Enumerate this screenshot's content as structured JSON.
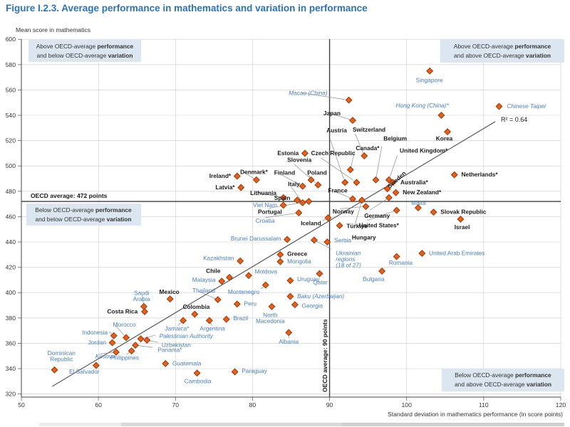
{
  "title": "Figure I.2.3. Average performance in mathematics and variation in performance",
  "colors": {
    "title_blue": "#2e73b5",
    "marker_fill": "#e2611f",
    "marker_stroke": "#9a3b0c",
    "partner_label": "#4a7ebc",
    "oecd_label": "#1a1a1a",
    "quadrant_box_bg": "#dce6f1",
    "gridline": "#cccccc",
    "reference_line": "#3f3f3f"
  },
  "chart_data": {
    "type": "scatter",
    "title": "Figure I.2.3. Average performance in mathematics and variation in performance",
    "ylabel": "Mean score in mathematics",
    "xlabel": "Standard deviation in mathematics performance (in score points)",
    "xlim": [
      50,
      120
    ],
    "xtick_step": 10,
    "ylim": [
      320,
      600
    ],
    "ytick_step": 20,
    "grid": true,
    "oecd_line_h": {
      "value": 472,
      "label": "OECD average: 472 points"
    },
    "oecd_line_v": {
      "value": 90,
      "label": "OECD average: 90 points"
    },
    "trend": {
      "x1": 54,
      "y1": 326,
      "x2": 111.5,
      "y2": 535,
      "r2_label": "R² = 0.64"
    },
    "quadrants": {
      "tl": {
        "l1": "Above OECD-average ",
        "l1b": "performance",
        "l2": "and below OECD-average ",
        "l2b": "variation"
      },
      "tr": {
        "l1": "Above OECD-average ",
        "l1b": "performance",
        "l2": "and above OECD-average ",
        "l2b": "variation"
      },
      "bl": {
        "l1": "Below OECD-average ",
        "l1b": "performance",
        "l2": "and below OECD-average ",
        "l2b": "variation"
      },
      "br": {
        "l1": "Below OECD-average ",
        "l1b": "performance",
        "l2": "and above OECD-average ",
        "l2b": "variation"
      }
    },
    "points": [
      {
        "label": "Singapore",
        "sd": 103,
        "mean": 575,
        "grp": "p",
        "lx": 101.2,
        "ly": 567.5,
        "ta": "s"
      },
      {
        "label": "Macao (China)",
        "sd": 92.5,
        "mean": 552,
        "grp": "p",
        "i": true,
        "lx": 84.7,
        "ly": 557.5,
        "ta": "s",
        "ld": true
      },
      {
        "label": "Chinese Taipei",
        "sd": 112,
        "mean": 547,
        "grp": "p",
        "i": true,
        "lx": 113,
        "ly": 547,
        "ta": "s"
      },
      {
        "label": "Hong Kong (China)*",
        "sd": 104.5,
        "mean": 540,
        "grp": "p",
        "i": true,
        "lx": 98.6,
        "ly": 547.5,
        "ta": "s"
      },
      {
        "label": "Japan",
        "sd": 93,
        "mean": 536,
        "grp": "o",
        "lx": 89.2,
        "ly": 541.5,
        "ta": "s",
        "ld": true
      },
      {
        "label": "Korea",
        "sd": 105.3,
        "mean": 527,
        "grp": "o",
        "lx": 103.8,
        "ly": 521.5,
        "ta": "s"
      },
      {
        "label": "Estonia",
        "sd": 86.8,
        "mean": 510,
        "grp": "o",
        "lx": 86,
        "ly": 510,
        "ta": "e"
      },
      {
        "label": "Czech Republic",
        "sd": 93.5,
        "mean": 487,
        "grp": "o",
        "lx": 87.6,
        "ly": 510,
        "ta": "s",
        "ld": true
      },
      {
        "label": "Switzerland",
        "sd": 94.5,
        "mean": 508,
        "grp": "o",
        "lx": 93,
        "ly": 528.5,
        "ta": "s",
        "ld": true
      },
      {
        "label": "Austria",
        "sd": 92,
        "mean": 487,
        "grp": "o",
        "lx": 89.6,
        "ly": 528,
        "ta": "s",
        "ld": true
      },
      {
        "label": "Belgium",
        "sd": 96,
        "mean": 489,
        "grp": "o",
        "lx": 97,
        "ly": 521.5,
        "ta": "s",
        "ld": true
      },
      {
        "label": "Canada*",
        "sd": 92.7,
        "mean": 497,
        "grp": "o",
        "lx": 93.4,
        "ly": 514,
        "ta": "s",
        "ld": true
      },
      {
        "label": "United Kingdom*",
        "sd": 97.7,
        "mean": 489,
        "grp": "o",
        "lx": 99.1,
        "ly": 512,
        "ta": "s",
        "ld": true
      },
      {
        "label": "Slovenia",
        "sd": 88.5,
        "mean": 485,
        "grp": "o",
        "lx": 84.5,
        "ly": 504.5,
        "ta": "s",
        "ld": true
      },
      {
        "label": "Finland",
        "sd": 86.5,
        "mean": 484,
        "grp": "o",
        "lx": 82.8,
        "ly": 494.5,
        "ta": "s",
        "ld": true
      },
      {
        "label": "Poland",
        "sd": 87.6,
        "mean": 489,
        "grp": "o",
        "lx": 87.1,
        "ly": 494.5,
        "ta": "s",
        "ld": true
      },
      {
        "label": "Italy",
        "sd": 86.5,
        "mean": 471,
        "grp": "o",
        "lx": 84.6,
        "ly": 485.5,
        "ta": "s",
        "ld": true
      },
      {
        "label": "Denmark*",
        "sd": 80.5,
        "mean": 489,
        "grp": "o",
        "lx": 78.4,
        "ly": 495,
        "ta": "s",
        "ld": true
      },
      {
        "label": "Ireland*",
        "sd": 78,
        "mean": 492,
        "grp": "o",
        "lx": 77.2,
        "ly": 492,
        "ta": "e"
      },
      {
        "label": "Latvia*",
        "sd": 78.5,
        "mean": 483,
        "grp": "o",
        "lx": 77.7,
        "ly": 483,
        "ta": "e"
      },
      {
        "label": "Lithuania",
        "sd": 84,
        "mean": 475,
        "grp": "o",
        "lx": 79.7,
        "ly": 478.5,
        "ta": "s",
        "ld": true
      },
      {
        "label": "Spain",
        "sd": 85.8,
        "mean": 473,
        "grp": "o",
        "lx": 84.9,
        "ly": 474.5,
        "ta": "e"
      },
      {
        "label": "Viet Nam",
        "sd": 84,
        "mean": 469,
        "grp": "p",
        "lx": 83.2,
        "ly": 469,
        "ta": "e"
      },
      {
        "label": "Portugal",
        "sd": 87.3,
        "mean": 472,
        "grp": "o",
        "lx": 80.7,
        "ly": 463.5,
        "ta": "s",
        "ld": true
      },
      {
        "label": "Croatia",
        "sd": 86,
        "mean": 463,
        "grp": "p",
        "lx": 80.4,
        "ly": 456.5,
        "ta": "s",
        "ld": true
      },
      {
        "label": "Iceland",
        "sd": 89.8,
        "mean": 459,
        "grp": "o",
        "lx": 88.9,
        "ly": 454.5,
        "ta": "e",
        "ld": true
      },
      {
        "label": "Türkiye",
        "sd": 91.3,
        "mean": 453,
        "grp": "o",
        "lx": 92.2,
        "ly": 452.5,
        "ta": "s"
      },
      {
        "label": "Norway",
        "sd": 94.7,
        "mean": 468,
        "grp": "o",
        "lx": 90.4,
        "ly": 464,
        "ta": "s",
        "ld": true
      },
      {
        "label": "France",
        "sd": 93,
        "mean": 474,
        "grp": "o",
        "lx": 89.8,
        "ly": 480.5,
        "ta": "s",
        "ld": true
      },
      {
        "label": "Sweden",
        "sd": 97.5,
        "mean": 482,
        "grp": "o",
        "lx": 97.8,
        "ly": 483.5,
        "ta": "s",
        "rot": -42
      },
      {
        "label": "Australia*",
        "sd": 98.2,
        "mean": 487,
        "grp": "o",
        "lx": 99.2,
        "ly": 487,
        "ta": "s"
      },
      {
        "label": "New Zealand*",
        "sd": 98.6,
        "mean": 479,
        "grp": "o",
        "lx": 99.5,
        "ly": 479,
        "ta": "s"
      },
      {
        "label": "Netherlands*",
        "sd": 106.2,
        "mean": 493,
        "grp": "o",
        "lx": 107.1,
        "ly": 493,
        "ta": "s"
      },
      {
        "label": "Germany",
        "sd": 97.7,
        "mean": 475,
        "grp": "o",
        "lx": 94.5,
        "ly": 460.5,
        "ta": "s",
        "ld": true
      },
      {
        "label": "United States*",
        "sd": 98.7,
        "mean": 465,
        "grp": "o",
        "lx": 93.8,
        "ly": 453,
        "ta": "s",
        "ld": true
      },
      {
        "label": "Hungary",
        "sd": 94.2,
        "mean": 473,
        "grp": "o",
        "lx": 92.9,
        "ly": 443.5,
        "ta": "s",
        "ld": true
      },
      {
        "label": "Malta",
        "sd": 101.5,
        "mean": 467,
        "grp": "p",
        "lx": 100.6,
        "ly": 470.5,
        "ta": "s"
      },
      {
        "label": "Slovak Republic",
        "sd": 103.5,
        "mean": 463.5,
        "grp": "o",
        "lx": 104.4,
        "ly": 463.5,
        "ta": "s"
      },
      {
        "label": "Israel",
        "sd": 107,
        "mean": 458,
        "grp": "o",
        "lx": 107.2,
        "ly": 451.5,
        "ta": "m"
      },
      {
        "label": "Brunei Darussalam",
        "sd": 84.5,
        "mean": 442,
        "grp": "p",
        "lx": 83.7,
        "ly": 442.5,
        "ta": "e"
      },
      {
        "label": "Serbia",
        "sd": 89.7,
        "mean": 440,
        "grp": "p",
        "lx": 90.6,
        "ly": 441,
        "ta": "s"
      },
      {
        "label": "Ukrainian regions (18 of 27)",
        "sd": 88,
        "mean": 441.5,
        "grp": "p",
        "i": true,
        "lx": 90.8,
        "ly": 431,
        "ta": "s",
        "ld": true,
        "lines": [
          "Ukrainian",
          "regions",
          "(18 of 27)"
        ]
      },
      {
        "label": "United Arab Emirates",
        "sd": 102,
        "mean": 431,
        "grp": "p",
        "lx": 102.9,
        "ly": 431,
        "ta": "s"
      },
      {
        "label": "Romania",
        "sd": 98.7,
        "mean": 428.5,
        "grp": "p",
        "lx": 97.7,
        "ly": 423.5,
        "ta": "s"
      },
      {
        "label": "Greece",
        "sd": 83.6,
        "mean": 430,
        "grp": "o",
        "lx": 84.5,
        "ly": 430.5,
        "ta": "s"
      },
      {
        "label": "Mongolia",
        "sd": 83.6,
        "mean": 424.5,
        "grp": "p",
        "lx": 84.5,
        "ly": 424.5,
        "ta": "s"
      },
      {
        "label": "Kazakhstan",
        "sd": 78.4,
        "mean": 425,
        "grp": "p",
        "lx": 77.6,
        "ly": 427,
        "ta": "e"
      },
      {
        "label": "Bulgaria",
        "sd": 96.8,
        "mean": 417,
        "grp": "p",
        "lx": 94.3,
        "ly": 410.5,
        "ta": "s"
      },
      {
        "label": "Moldova",
        "sd": 79.5,
        "mean": 413.5,
        "grp": "p",
        "lx": 80.3,
        "ly": 416.5,
        "ta": "s"
      },
      {
        "label": "Qatar",
        "sd": 88.7,
        "mean": 415,
        "grp": "p",
        "lx": 88.8,
        "ly": 408,
        "ta": "m"
      },
      {
        "label": "Uruguay",
        "sd": 84.9,
        "mean": 409.5,
        "grp": "p",
        "lx": 85.8,
        "ly": 410.5,
        "ta": "s"
      },
      {
        "label": "Chile",
        "sd": 77,
        "mean": 412,
        "grp": "o",
        "lx": 74.9,
        "ly": 417,
        "ta": "m"
      },
      {
        "label": "Malaysia",
        "sd": 76,
        "mean": 409,
        "grp": "p",
        "lx": 75.2,
        "ly": 410,
        "ta": "e"
      },
      {
        "label": "Montenegro",
        "sd": 81.7,
        "mean": 406,
        "grp": "p",
        "lx": 80.9,
        "ly": 400.5,
        "ta": "e",
        "ld": true
      },
      {
        "label": "Thailand",
        "sd": 75.5,
        "mean": 394.5,
        "grp": "p",
        "lx": 72.2,
        "ly": 401.5,
        "ta": "s",
        "ld": true
      },
      {
        "label": "Peru",
        "sd": 78,
        "mean": 391,
        "grp": "p",
        "lx": 78.9,
        "ly": 391,
        "ta": "s"
      },
      {
        "label": "Baku (Azerbaijan)",
        "sd": 84.9,
        "mean": 397,
        "grp": "p",
        "i": true,
        "lx": 85.8,
        "ly": 397,
        "ta": "s"
      },
      {
        "label": "Georgia",
        "sd": 85.5,
        "mean": 390.5,
        "grp": "p",
        "lx": 86.4,
        "ly": 389.5,
        "ta": "s"
      },
      {
        "label": "North Macedonia",
        "sd": 82.5,
        "mean": 389,
        "grp": "p",
        "lx": 82.3,
        "ly": 382,
        "ta": "m",
        "lines": [
          "North",
          "Macedonia"
        ]
      },
      {
        "label": "Albania",
        "sd": 84.7,
        "mean": 368.5,
        "grp": "p",
        "lx": 84.7,
        "ly": 361,
        "ta": "m",
        "ld": true
      },
      {
        "label": "Mexico",
        "sd": 69.3,
        "mean": 395,
        "grp": "o",
        "lx": 69.2,
        "ly": 400.5,
        "ta": "m"
      },
      {
        "label": "Saudi Arabia",
        "sd": 65.9,
        "mean": 389,
        "grp": "p",
        "lx": 65.6,
        "ly": 399.5,
        "ta": "m",
        "ld": true,
        "lines": [
          "Saudi",
          "Arabia"
        ]
      },
      {
        "label": "Costa Rica",
        "sd": 66,
        "mean": 385,
        "grp": "o",
        "lx": 65.1,
        "ly": 385,
        "ta": "e"
      },
      {
        "label": "Colombia",
        "sd": 72.5,
        "mean": 383,
        "grp": "o",
        "lx": 72.7,
        "ly": 388.5,
        "ta": "m"
      },
      {
        "label": "Brazil",
        "sd": 76.6,
        "mean": 379,
        "grp": "p",
        "lx": 77.5,
        "ly": 379.5,
        "ta": "s"
      },
      {
        "label": "Argentina",
        "sd": 74.4,
        "mean": 378,
        "grp": "p",
        "lx": 74.8,
        "ly": 371.5,
        "ta": "m",
        "ld": true
      },
      {
        "label": "Jamaica*",
        "sd": 71,
        "mean": 378,
        "grp": "p",
        "lx": 70.2,
        "ly": 371.5,
        "ta": "m",
        "ld": true
      },
      {
        "label": "Morocco",
        "sd": 63.6,
        "mean": 364.5,
        "grp": "p",
        "lx": 61.9,
        "ly": 374.5,
        "ta": "s",
        "ld": true
      },
      {
        "label": "Indonesia",
        "sd": 62,
        "mean": 366,
        "grp": "p",
        "lx": 61.2,
        "ly": 368.5,
        "ta": "e",
        "ld": true
      },
      {
        "label": "Jordan",
        "sd": 61.8,
        "mean": 360.5,
        "grp": "p",
        "lx": 61,
        "ly": 360.5,
        "ta": "e"
      },
      {
        "label": "Palestinian Authority",
        "sd": 65.5,
        "mean": 363.5,
        "grp": "p",
        "i": true,
        "lx": 67.9,
        "ly": 365.5,
        "ta": "s",
        "ld": true
      },
      {
        "label": "Uzbekistan",
        "sd": 66.3,
        "mean": 362.5,
        "grp": "p",
        "lx": 68.2,
        "ly": 358.5,
        "ta": "s",
        "ld": true
      },
      {
        "label": "Panama*",
        "sd": 64.8,
        "mean": 358.5,
        "grp": "p",
        "lx": 67.7,
        "ly": 354.5,
        "ta": "s",
        "ld": true
      },
      {
        "label": "Philippines",
        "sd": 64.3,
        "mean": 354,
        "grp": "p",
        "lx": 63.4,
        "ly": 348.5,
        "ta": "m",
        "ld": true
      },
      {
        "label": "Kosovo",
        "sd": 62.3,
        "mean": 353,
        "grp": "p",
        "i": true,
        "lx": 59.6,
        "ly": 349.5,
        "ta": "s",
        "ld": true
      },
      {
        "label": "El Salvador",
        "sd": 59.7,
        "mean": 342.5,
        "grp": "p",
        "lx": 56.2,
        "ly": 337.5,
        "ta": "s"
      },
      {
        "label": "Dominican Republic",
        "sd": 54.3,
        "mean": 339,
        "grp": "p",
        "lx": 55.2,
        "ly": 352,
        "ta": "m",
        "lines": [
          "Dominican",
          "Republic"
        ]
      },
      {
        "label": "Guatemala",
        "sd": 68.7,
        "mean": 344,
        "grp": "p",
        "lx": 69.6,
        "ly": 344,
        "ta": "s"
      },
      {
        "label": "Cambodia",
        "sd": 72.8,
        "mean": 336.5,
        "grp": "p",
        "lx": 72.9,
        "ly": 330,
        "ta": "m"
      },
      {
        "label": "Paraguay",
        "sd": 77.7,
        "mean": 337.5,
        "grp": "p",
        "lx": 78.6,
        "ly": 338,
        "ta": "s"
      }
    ]
  }
}
